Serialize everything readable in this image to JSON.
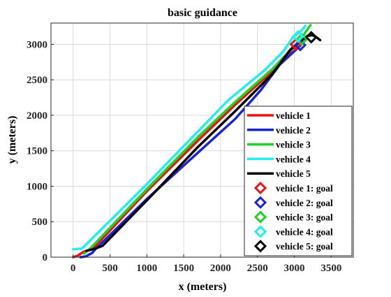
{
  "chart_data": {
    "type": "line",
    "title": "basic guidance",
    "xlabel": "x (meters)",
    "ylabel": "y (meters)",
    "xlim": [
      -300,
      3800
    ],
    "ylim": [
      0,
      3300
    ],
    "xticks": [
      0,
      500,
      1000,
      1500,
      2000,
      2500,
      3000,
      3500
    ],
    "yticks": [
      0,
      500,
      1000,
      1500,
      2000,
      2500,
      3000
    ],
    "grid": true,
    "legend_position": "lower-right",
    "series": [
      {
        "name": "vehicle 1",
        "color": "#ee1111",
        "x": [
          0,
          60,
          150,
          260,
          1000,
          1700,
          2200,
          2700,
          2950,
          3050
        ],
        "y": [
          0,
          20,
          80,
          110,
          930,
          1650,
          2150,
          2620,
          2900,
          3030
        ]
      },
      {
        "name": "vehicle 2",
        "color": "#1a22d8",
        "x": [
          100,
          170,
          260,
          300,
          1000,
          1700,
          2200,
          2550,
          2800,
          3080
        ],
        "y": [
          0,
          10,
          60,
          110,
          820,
          1480,
          1950,
          2360,
          2710,
          2980
        ]
      },
      {
        "name": "vehicle 3",
        "color": "#1ed41e",
        "x": [
          150,
          230,
          1000,
          1700,
          2200,
          2700,
          2950,
          3100,
          3150,
          3220
        ],
        "y": [
          50,
          120,
          960,
          1700,
          2190,
          2650,
          2920,
          3080,
          3170,
          3270
        ]
      },
      {
        "name": "vehicle 4",
        "color": "#22eeee",
        "x": [
          0,
          120,
          1000,
          1700,
          2100,
          2600,
          2850,
          2980,
          3100,
          3150
        ],
        "y": [
          110,
          120,
          1030,
          1780,
          2210,
          2640,
          2900,
          3100,
          3200,
          3260
        ]
      },
      {
        "name": "vehicle 5",
        "color": "#000000",
        "x": [
          180,
          300,
          400,
          1000,
          1700,
          2200,
          2700,
          2950,
          3180,
          3250,
          3300,
          3350
        ],
        "y": [
          90,
          120,
          160,
          800,
          1560,
          2060,
          2580,
          2930,
          3120,
          3130,
          3100,
          3060
        ]
      }
    ],
    "goals": [
      {
        "name": "vehicle 1: goal",
        "color": "#ee1111",
        "x": 3020,
        "y": 3000
      },
      {
        "name": "vehicle 2: goal",
        "color": "#1a22d8",
        "x": 3080,
        "y": 2990
      },
      {
        "name": "vehicle 3: goal",
        "color": "#1ed41e",
        "x": 3100,
        "y": 3070
      },
      {
        "name": "vehicle 4: goal",
        "color": "#22eeee",
        "x": 3050,
        "y": 3110
      },
      {
        "name": "vehicle 5: goal",
        "color": "#000000",
        "x": 3230,
        "y": 3100
      }
    ]
  }
}
